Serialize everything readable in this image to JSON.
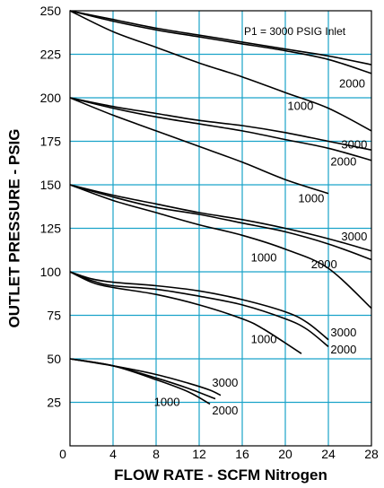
{
  "chart_data": {
    "type": "line",
    "title": "",
    "xlabel": "FLOW RATE - SCFM Nitrogen",
    "ylabel": "OUTLET PRESSURE - PSIG",
    "xlim": [
      0,
      28
    ],
    "ylim": [
      0,
      250
    ],
    "x_ticks": [
      "0",
      "4",
      "8",
      "12",
      "16",
      "20",
      "24",
      "28"
    ],
    "y_ticks": [
      "25",
      "50",
      "75",
      "100",
      "125",
      "150",
      "175",
      "200",
      "225",
      "250"
    ],
    "grid": true,
    "grid_color": "#1aa3c9",
    "curve_color": "#000000",
    "annotation": "P1 = 3000 PSIG Inlet",
    "series": [
      {
        "name": "3000",
        "x": [
          0,
          4,
          8,
          12,
          16,
          20,
          24,
          28
        ],
        "y": [
          250,
          245,
          240,
          236,
          232,
          228,
          224,
          219
        ]
      },
      {
        "name": "2000",
        "x": [
          0,
          4,
          8,
          12,
          16,
          20,
          24,
          28
        ],
        "y": [
          250,
          244,
          239,
          235,
          231,
          227,
          222,
          214
        ]
      },
      {
        "name": "1000",
        "x": [
          0,
          4,
          8,
          12,
          16,
          20,
          24,
          28
        ],
        "y": [
          250,
          238,
          229,
          220,
          212,
          203,
          194,
          181
        ]
      },
      {
        "name": "3000",
        "x": [
          0,
          4,
          8,
          12,
          16,
          20,
          24,
          28
        ],
        "y": [
          200,
          195,
          191,
          187,
          184,
          180,
          175,
          170
        ]
      },
      {
        "name": "2000",
        "x": [
          0,
          4,
          8,
          12,
          16,
          20,
          24,
          28
        ],
        "y": [
          200,
          194,
          189,
          185,
          181,
          176,
          171,
          164
        ]
      },
      {
        "name": "1000",
        "x": [
          0,
          4,
          8,
          12,
          16,
          20,
          24
        ],
        "y": [
          200,
          190,
          181,
          172,
          163,
          153,
          145
        ]
      },
      {
        "name": "3000",
        "x": [
          0,
          4,
          8,
          12,
          16,
          20,
          24,
          28
        ],
        "y": [
          150,
          144,
          139,
          134,
          130,
          125,
          119,
          112
        ]
      },
      {
        "name": "2000",
        "x": [
          0,
          4,
          8,
          12,
          16,
          20,
          24,
          28
        ],
        "y": [
          150,
          143,
          137,
          133,
          128,
          123,
          116,
          107
        ]
      },
      {
        "name": "1000",
        "x": [
          0,
          4,
          8,
          12,
          16,
          20,
          24,
          28
        ],
        "y": [
          150,
          141,
          134,
          127,
          121,
          113,
          102,
          79
        ]
      },
      {
        "name": "3000",
        "x": [
          0,
          2,
          4,
          8,
          12,
          16,
          20,
          22,
          24
        ],
        "y": [
          100,
          96,
          94,
          92,
          89,
          84,
          77,
          71,
          61
        ]
      },
      {
        "name": "2000",
        "x": [
          0,
          2,
          4,
          8,
          12,
          16,
          20,
          22,
          24
        ],
        "y": [
          100,
          95,
          92,
          90,
          86,
          81,
          73,
          67,
          57
        ]
      },
      {
        "name": "1000",
        "x": [
          0,
          2,
          4,
          8,
          12,
          16,
          18,
          21.5
        ],
        "y": [
          100,
          94,
          91,
          87,
          81,
          73,
          67,
          53
        ]
      },
      {
        "name": "3000",
        "x": [
          0,
          4,
          8,
          11,
          13,
          14
        ],
        "y": [
          50,
          46,
          41,
          36,
          32,
          29
        ]
      },
      {
        "name": "2000",
        "x": [
          0,
          4,
          8,
          11,
          13.5
        ],
        "y": [
          50,
          46,
          39,
          33,
          27
        ]
      },
      {
        "name": "1000",
        "x": [
          0,
          4,
          8,
          11,
          13
        ],
        "y": [
          50,
          46,
          38,
          31,
          24
        ]
      }
    ],
    "curve_labels": [
      {
        "text": "2000",
        "x": 25,
        "y": 206
      },
      {
        "text": "1000",
        "x": 20.2,
        "y": 193
      },
      {
        "text": "3000",
        "x": 25.2,
        "y": 171
      },
      {
        "text": "2000",
        "x": 24.2,
        "y": 161
      },
      {
        "text": "1000",
        "x": 21.2,
        "y": 140
      },
      {
        "text": "3000",
        "x": 25.2,
        "y": 118
      },
      {
        "text": "2000",
        "x": 22.4,
        "y": 102
      },
      {
        "text": "1000",
        "x": 16.8,
        "y": 106
      },
      {
        "text": "3000",
        "x": 24.2,
        "y": 63
      },
      {
        "text": "2000",
        "x": 24.2,
        "y": 53
      },
      {
        "text": "1000",
        "x": 16.8,
        "y": 59
      },
      {
        "text": "3000",
        "x": 13.2,
        "y": 34
      },
      {
        "text": "1000",
        "x": 7.8,
        "y": 23
      },
      {
        "text": "2000",
        "x": 13.2,
        "y": 18
      }
    ]
  }
}
